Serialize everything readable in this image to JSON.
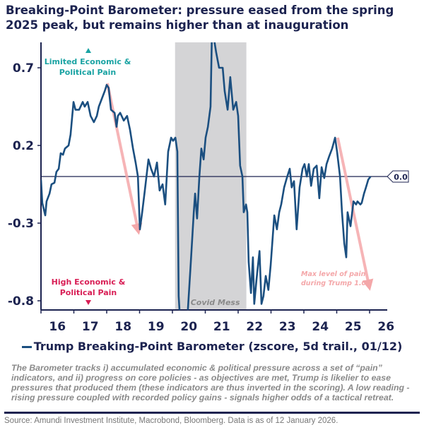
{
  "title": "Breaking-Point Barometer: pressure eased from the spring 2025 peak, but remains higher than at inauguration",
  "chart_data": {
    "type": "line",
    "title": "Breaking-Point Barometer: pressure eased from the spring 2025 peak, but remains higher than at inauguration",
    "xlim": [
      2016,
      2026.5
    ],
    "ylim": [
      -0.86,
      0.86
    ],
    "x_tick_labels": [
      "16",
      "17",
      "18",
      "19",
      "20",
      "21",
      "22",
      "23",
      "24",
      "25",
      "26"
    ],
    "y_ticks": [
      0.7,
      0.2,
      -0.3,
      -0.8
    ],
    "y_tick_labels": [
      "0.7",
      "0.2",
      "-0.3",
      "-0.8"
    ],
    "grid": false,
    "reference_line": {
      "y": 0.0,
      "label": "0.0"
    },
    "shaded_region": {
      "x": [
        2020.08,
        2022.25
      ],
      "label": "Covid Mess",
      "color": "#d4d4d6"
    },
    "annotations": {
      "top": "Limited Economic & Political Pain",
      "top_color": "#1aa3a3",
      "bottom": "High Economic & Political Pain",
      "bottom_color": "#d81e55",
      "max_pain": "Max level of pain during Trump 1.0",
      "max_pain_color": "#f4a7a9"
    },
    "arrows": [
      {
        "from": [
          2018.02,
          0.6
        ],
        "to": [
          2018.95,
          -0.34
        ]
      },
      {
        "from": [
          2025.03,
          0.25
        ],
        "to": [
          2025.98,
          -0.7
        ]
      }
    ],
    "legend_position": "bottom",
    "series": [
      {
        "name": "Trump Breaking-Point Barometer (zscore, 5d trail., 01/12)",
        "color": "#1b4f80",
        "x": [
          2016.0,
          2016.04,
          2016.13,
          2016.17,
          2016.26,
          2016.32,
          2016.41,
          2016.47,
          2016.54,
          2016.6,
          2016.67,
          2016.73,
          2016.84,
          2016.9,
          2016.99,
          2017.05,
          2017.16,
          2017.27,
          2017.33,
          2017.42,
          2017.51,
          2017.61,
          2017.7,
          2017.76,
          2017.85,
          2017.94,
          2018.0,
          2018.06,
          2018.13,
          2018.24,
          2018.3,
          2018.34,
          2018.41,
          2018.52,
          2018.62,
          2018.71,
          2018.8,
          2018.88,
          2018.95,
          2019.01,
          2019.08,
          2019.16,
          2019.27,
          2019.35,
          2019.44,
          2019.53,
          2019.61,
          2019.7,
          2019.78,
          2019.87,
          2019.96,
          2020.02,
          2020.09,
          2020.15,
          2020.19,
          2020.24,
          2020.41,
          2020.47,
          2020.56,
          2020.65,
          2020.69,
          2020.75,
          2020.82,
          2020.88,
          2020.95,
          2021.01,
          2021.08,
          2021.16,
          2021.2,
          2021.27,
          2021.33,
          2021.42,
          2021.53,
          2021.59,
          2021.68,
          2021.76,
          2021.85,
          2021.94,
          2022.0,
          2022.06,
          2022.13,
          2022.17,
          2022.24,
          2022.28,
          2022.32,
          2022.39,
          2022.45,
          2022.49,
          2022.56,
          2022.65,
          2022.71,
          2022.77,
          2022.84,
          2022.92,
          2022.99,
          2023.1,
          2023.18,
          2023.25,
          2023.31,
          2023.4,
          2023.48,
          2023.57,
          2023.63,
          2023.7,
          2023.78,
          2023.87,
          2023.96,
          2024.02,
          2024.09,
          2024.15,
          2024.22,
          2024.3,
          2024.39,
          2024.47,
          2024.54,
          2024.62,
          2024.69,
          2024.77,
          2024.86,
          2024.95,
          2025.01,
          2025.1,
          2025.16,
          2025.23,
          2025.29,
          2025.33,
          2025.42,
          2025.51,
          2025.59,
          2025.63,
          2025.72,
          2025.76,
          2025.83,
          2025.89,
          2025.96,
          2026.03
        ],
        "values": [
          -0.02,
          -0.17,
          -0.25,
          -0.16,
          -0.11,
          -0.05,
          -0.04,
          0.03,
          0.05,
          0.15,
          0.14,
          0.18,
          0.2,
          0.27,
          0.48,
          0.43,
          0.43,
          0.48,
          0.45,
          0.48,
          0.39,
          0.35,
          0.39,
          0.45,
          0.5,
          0.55,
          0.59,
          0.57,
          0.43,
          0.41,
          0.32,
          0.39,
          0.41,
          0.36,
          0.39,
          0.3,
          0.18,
          0.09,
          0.0,
          -0.34,
          -0.23,
          -0.09,
          0.11,
          0.05,
          0.0,
          0.09,
          -0.09,
          -0.05,
          -0.18,
          0.16,
          0.25,
          0.23,
          0.25,
          0.16,
          -0.77,
          -0.95,
          -0.95,
          -0.86,
          -0.55,
          -0.23,
          -0.11,
          -0.27,
          0.0,
          0.18,
          0.11,
          0.25,
          0.32,
          0.45,
          0.9,
          0.88,
          0.8,
          0.7,
          0.7,
          0.55,
          0.43,
          0.64,
          0.43,
          0.48,
          0.39,
          0.07,
          0.0,
          -0.23,
          -0.18,
          -0.23,
          -0.55,
          -0.75,
          -0.52,
          -0.82,
          -0.66,
          -0.48,
          -0.82,
          -0.77,
          -0.64,
          -0.73,
          -0.57,
          -0.25,
          -0.34,
          -0.23,
          -0.18,
          -0.07,
          -0.01,
          0.05,
          -0.07,
          -0.03,
          -0.34,
          -0.07,
          0.05,
          0.08,
          0.0,
          0.08,
          -0.06,
          0.05,
          0.07,
          -0.14,
          0.06,
          -0.01,
          0.08,
          0.13,
          0.18,
          0.25,
          0.16,
          0.0,
          -0.23,
          -0.43,
          -0.52,
          -0.23,
          -0.32,
          -0.16,
          -0.18,
          -0.16,
          -0.18,
          -0.17,
          -0.11,
          -0.07,
          -0.02,
          0.0
        ]
      }
    ]
  },
  "legend": {
    "label": "Trump Breaking-Point Barometer (zscore, 5d trail., 01/12)"
  },
  "note": "The Barometer tracks i) accumulated economic & political pressure across a set of “pain” indicators, and ii) progress on core policies - as objectives are met, Trump is likelier to ease pressures that produced them (these indicators are thus inverted in the scoring). A low reading - rising pressure coupled with recorded policy gains - signals higher odds of a tactical retreat.",
  "source": "Source: Amundi Investment Institute, Macrobond, Bloomberg. Data is as of 12 January 2026."
}
